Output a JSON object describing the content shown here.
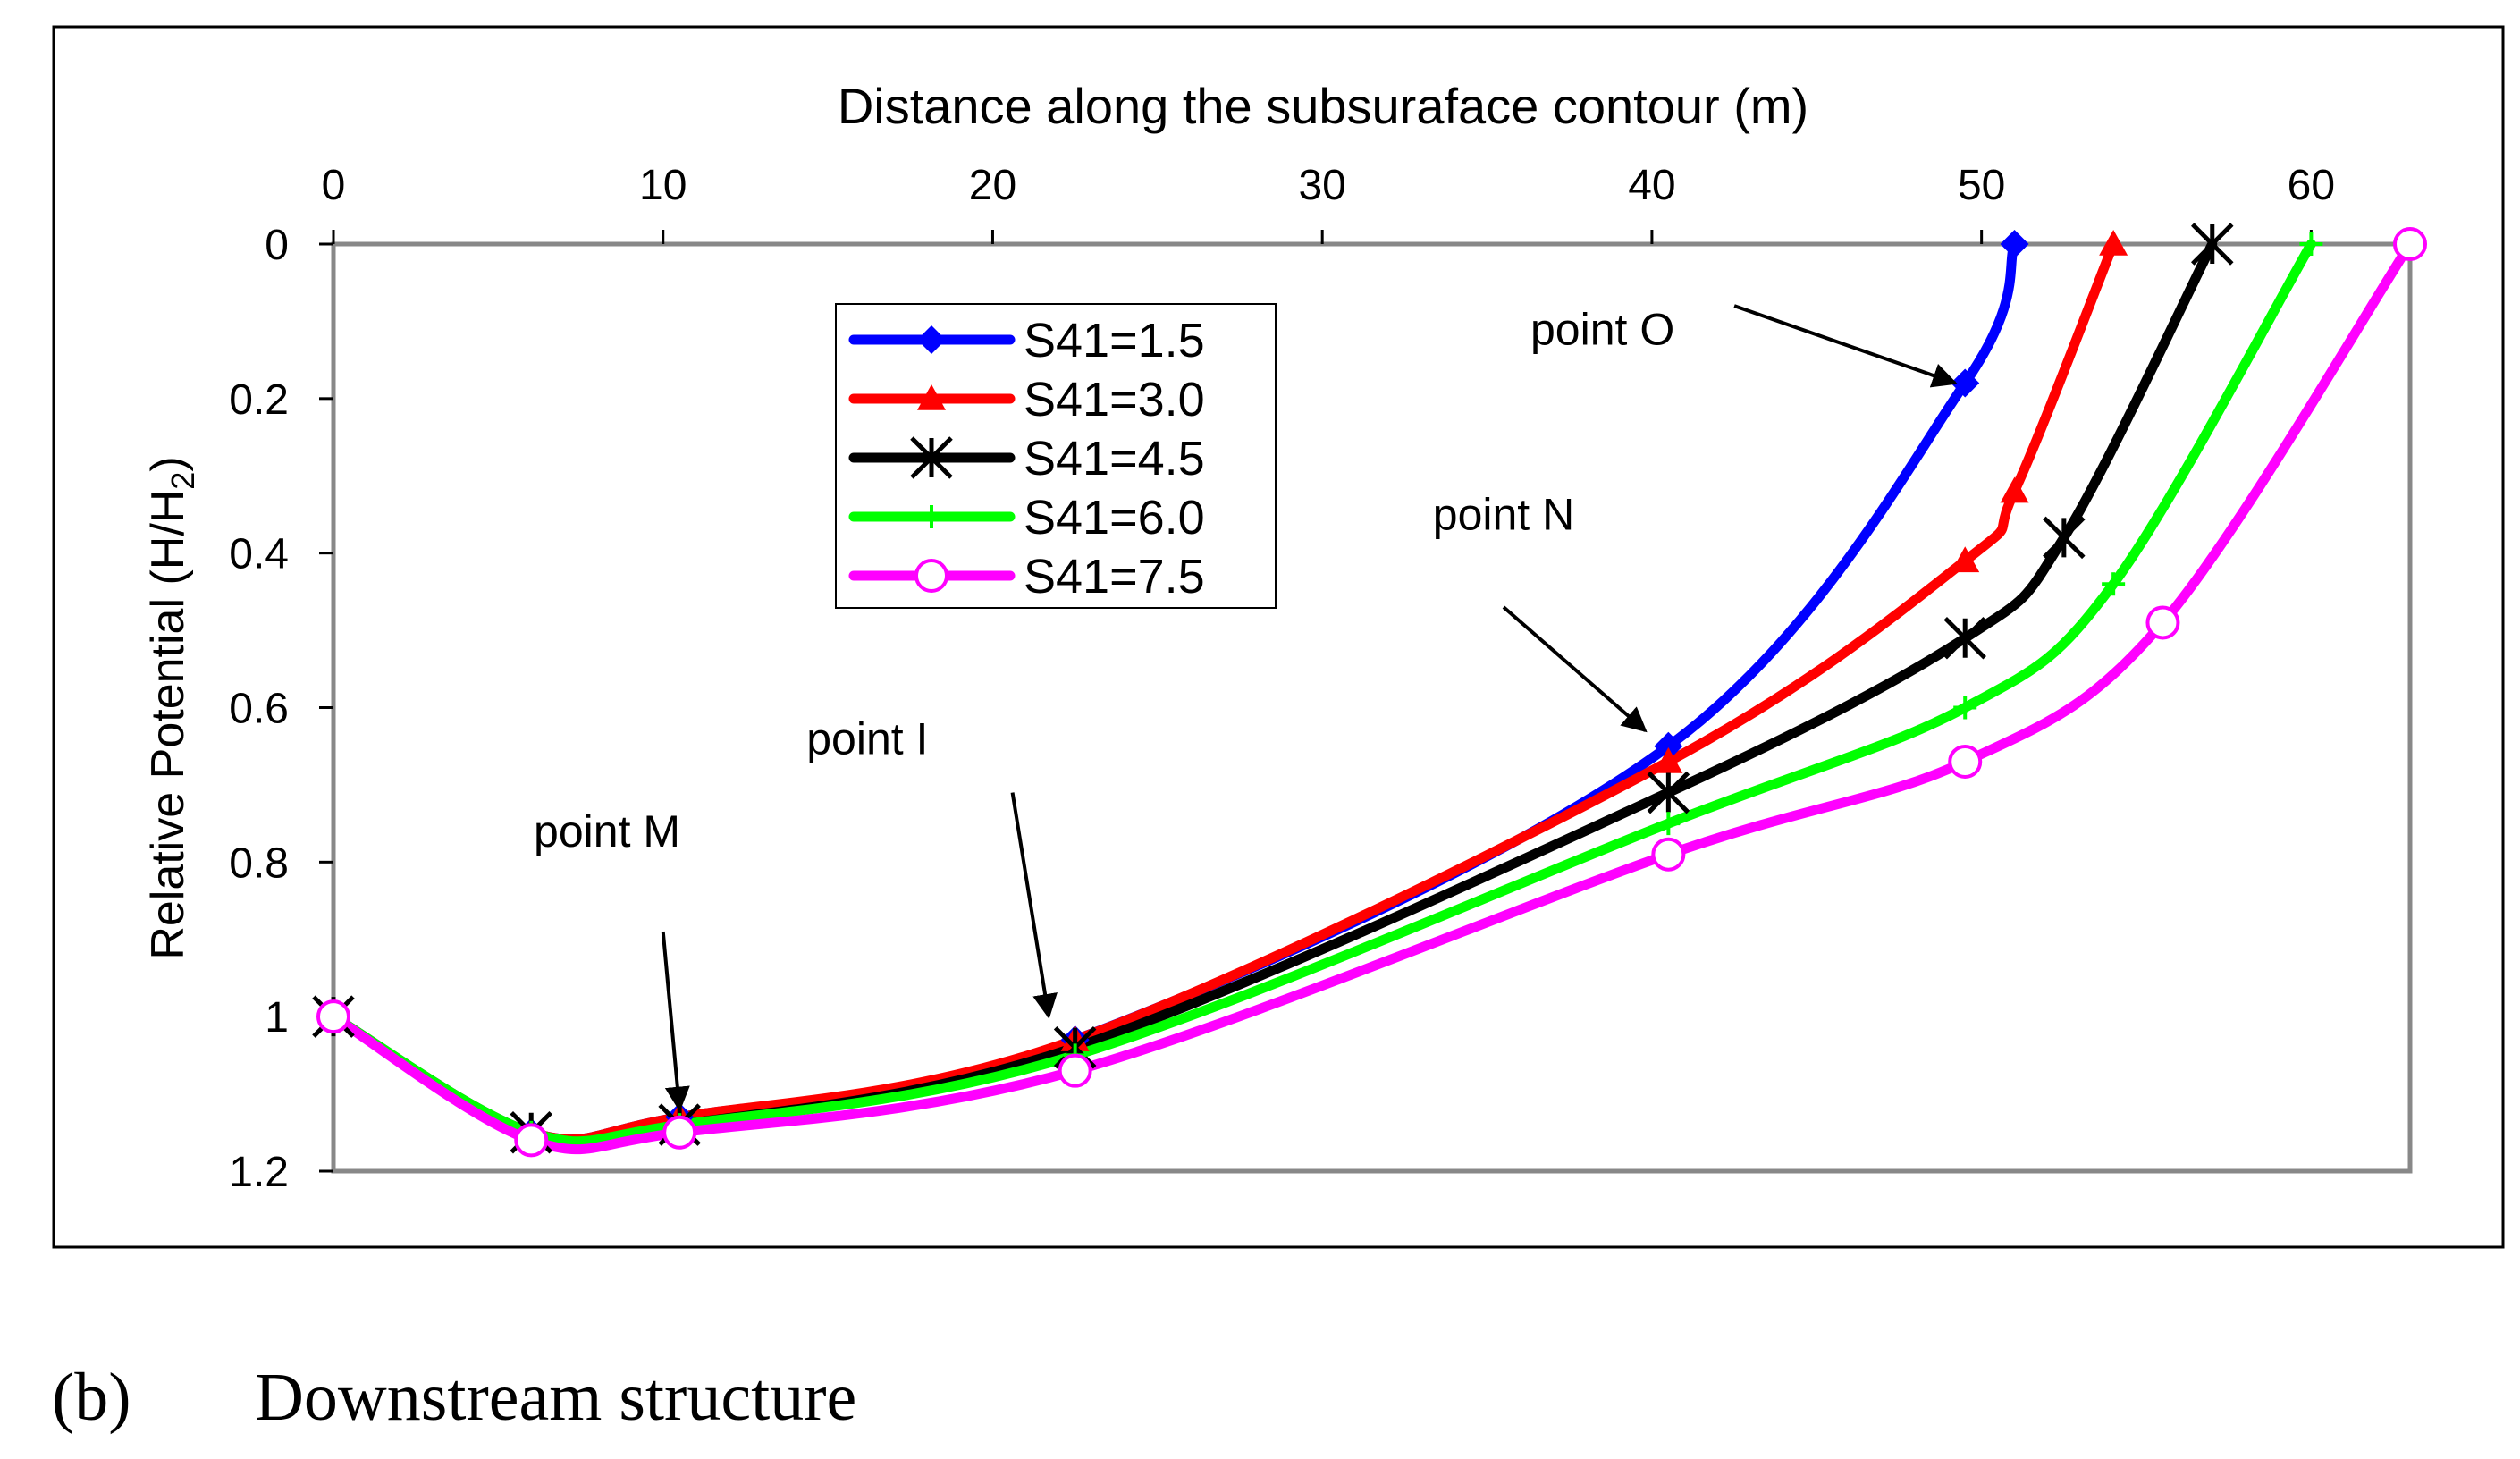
{
  "chart_data": {
    "type": "line",
    "xlabel": "Distance along the subsuraface contour (m)",
    "ylabel": "Relative Potential (H/H",
    "ylabel_subscript": "2",
    "ylabel_suffix": ")",
    "x_axis_position": "top",
    "y_axis_inverted": true,
    "xlim": [
      0,
      63
    ],
    "ylim": [
      0,
      1.2
    ],
    "xticks": [
      0,
      10,
      20,
      30,
      40,
      50,
      60
    ],
    "yticks": [
      0,
      0.2,
      0.4,
      0.6,
      0.8,
      1,
      1.2
    ],
    "ytick_labels": [
      "0",
      "0.2",
      "0.4",
      "0.6",
      "0.8",
      "1",
      "1.2"
    ],
    "grid": false,
    "legend_position": "upper-left-center",
    "series": [
      {
        "name": "S41=1.5",
        "color": "#0000ff",
        "marker": "diamond",
        "x": [
          0,
          6,
          10.5,
          22.5,
          40.5,
          49.5,
          51
        ],
        "y": [
          1.0,
          1.15,
          1.13,
          1.03,
          0.65,
          0.18,
          0
        ]
      },
      {
        "name": "S41=3.0",
        "color": "#ff0000",
        "marker": "triangle",
        "x": [
          0,
          6,
          10.5,
          22.5,
          40.5,
          49.5,
          51,
          54
        ],
        "y": [
          1.0,
          1.15,
          1.13,
          1.03,
          0.67,
          0.41,
          0.32,
          0
        ]
      },
      {
        "name": "S41=4.5",
        "color": "#000000",
        "marker": "star",
        "x": [
          0,
          6,
          10.5,
          22.5,
          40.5,
          49.5,
          52.5,
          57
        ],
        "y": [
          1.0,
          1.15,
          1.14,
          1.04,
          0.71,
          0.51,
          0.38,
          0
        ]
      },
      {
        "name": "S41=6.0",
        "color": "#00ff00",
        "marker": "plus",
        "x": [
          0,
          6,
          10.5,
          22.5,
          40.5,
          49.5,
          54,
          60
        ],
        "y": [
          1.0,
          1.15,
          1.14,
          1.05,
          0.75,
          0.6,
          0.44,
          0
        ]
      },
      {
        "name": "S41=7.5",
        "color": "#ff00ff",
        "marker": "circle",
        "x": [
          0,
          6,
          10.5,
          22.5,
          40.5,
          49.5,
          55.5,
          63
        ],
        "y": [
          1.0,
          1.16,
          1.15,
          1.07,
          0.79,
          0.67,
          0.49,
          0
        ]
      }
    ],
    "annotations": [
      {
        "text": "point O",
        "x_text": 38.5,
        "y_text": 0.13,
        "arrow_from": [
          42.5,
          0.08
        ],
        "arrow_to": [
          49.2,
          0.18
        ]
      },
      {
        "text": "point N",
        "x_text": 35.5,
        "y_text": 0.37,
        "arrow_from": [
          35.5,
          0.47
        ],
        "arrow_to": [
          39.8,
          0.63
        ]
      },
      {
        "text": "point I",
        "x_text": 16.2,
        "y_text": 0.66,
        "arrow_from": [
          20.6,
          0.71
        ],
        "arrow_to": [
          21.7,
          1.0
        ]
      },
      {
        "text": "point M",
        "x_text": 8.3,
        "y_text": 0.78,
        "arrow_from": [
          10.0,
          0.89
        ],
        "arrow_to": [
          10.5,
          1.12
        ]
      }
    ]
  },
  "caption": {
    "label": "(b)",
    "text": "Downstream structure"
  }
}
